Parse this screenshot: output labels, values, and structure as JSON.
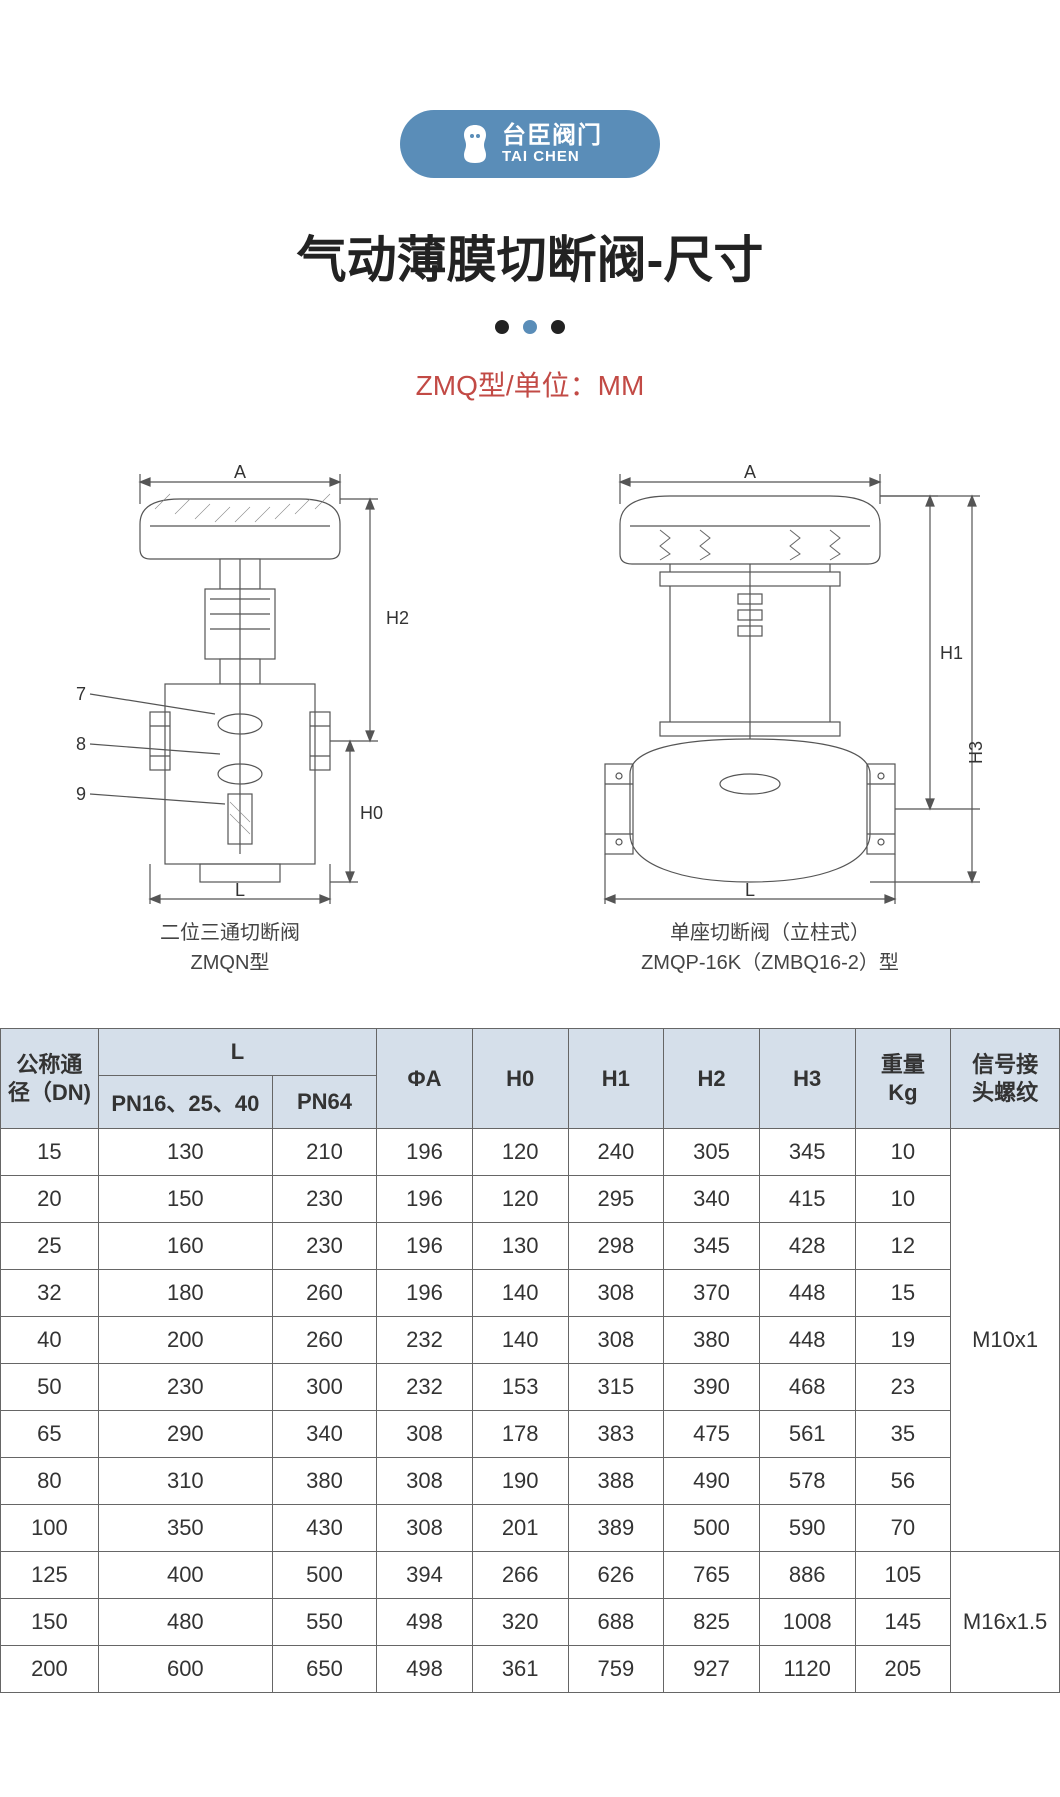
{
  "logo": {
    "cn": "台臣阀门",
    "en": "TAI CHEN",
    "badge_bg": "#5a8db8",
    "text_color": "#ffffff"
  },
  "title": "气动薄膜切断阀-尺寸",
  "dots": [
    "#222222",
    "#5a8db8",
    "#222222"
  ],
  "subtitle": "ZMQ型/单位：MM",
  "subtitle_color": "#c24a45",
  "diagrams": {
    "left": {
      "dim_top": "A",
      "dim_right_upper": "H2",
      "dim_right_lower": "H0",
      "dim_bottom": "L",
      "callouts": [
        "7",
        "8",
        "9"
      ],
      "caption_line1": "二位三通切断阀",
      "caption_line2": "ZMQN型"
    },
    "right": {
      "dim_top": "A",
      "dim_right_upper": "H1",
      "dim_right_full": "H3",
      "dim_bottom": "L",
      "caption_line1": "单座切断阀（立柱式）",
      "caption_line2": "ZMQP-16K（ZMBQ16-2）型"
    }
  },
  "table": {
    "header_bg": "#d5dfea",
    "border_color": "#666666",
    "columns": {
      "dn": "公称通\n径（DN)",
      "l_group": "L",
      "l_sub1": "PN16、25、40",
      "l_sub2": "PN64",
      "phi_a": "ΦA",
      "h0": "H0",
      "h1": "H1",
      "h2": "H2",
      "h3": "H3",
      "weight": "重量\nKg",
      "thread": "信号接\n头螺纹"
    },
    "rows": [
      {
        "dn": "15",
        "l1": "130",
        "l2": "210",
        "a": "196",
        "h0": "120",
        "h1": "240",
        "h2": "305",
        "h3": "345",
        "kg": "10"
      },
      {
        "dn": "20",
        "l1": "150",
        "l2": "230",
        "a": "196",
        "h0": "120",
        "h1": "295",
        "h2": "340",
        "h3": "415",
        "kg": "10"
      },
      {
        "dn": "25",
        "l1": "160",
        "l2": "230",
        "a": "196",
        "h0": "130",
        "h1": "298",
        "h2": "345",
        "h3": "428",
        "kg": "12"
      },
      {
        "dn": "32",
        "l1": "180",
        "l2": "260",
        "a": "196",
        "h0": "140",
        "h1": "308",
        "h2": "370",
        "h3": "448",
        "kg": "15"
      },
      {
        "dn": "40",
        "l1": "200",
        "l2": "260",
        "a": "232",
        "h0": "140",
        "h1": "308",
        "h2": "380",
        "h3": "448",
        "kg": "19"
      },
      {
        "dn": "50",
        "l1": "230",
        "l2": "300",
        "a": "232",
        "h0": "153",
        "h1": "315",
        "h2": "390",
        "h3": "468",
        "kg": "23"
      },
      {
        "dn": "65",
        "l1": "290",
        "l2": "340",
        "a": "308",
        "h0": "178",
        "h1": "383",
        "h2": "475",
        "h3": "561",
        "kg": "35"
      },
      {
        "dn": "80",
        "l1": "310",
        "l2": "380",
        "a": "308",
        "h0": "190",
        "h1": "388",
        "h2": "490",
        "h3": "578",
        "kg": "56"
      },
      {
        "dn": "100",
        "l1": "350",
        "l2": "430",
        "a": "308",
        "h0": "201",
        "h1": "389",
        "h2": "500",
        "h3": "590",
        "kg": "70"
      },
      {
        "dn": "125",
        "l1": "400",
        "l2": "500",
        "a": "394",
        "h0": "266",
        "h1": "626",
        "h2": "765",
        "h3": "886",
        "kg": "105"
      },
      {
        "dn": "150",
        "l1": "480",
        "l2": "550",
        "a": "498",
        "h0": "320",
        "h1": "688",
        "h2": "825",
        "h3": "1008",
        "kg": "145"
      },
      {
        "dn": "200",
        "l1": "600",
        "l2": "650",
        "a": "498",
        "h0": "361",
        "h1": "759",
        "h2": "927",
        "h3": "1120",
        "kg": "205"
      }
    ],
    "thread_groups": [
      {
        "label": "M10x1",
        "span": 9
      },
      {
        "label": "M16x1.5",
        "span": 3
      }
    ]
  }
}
